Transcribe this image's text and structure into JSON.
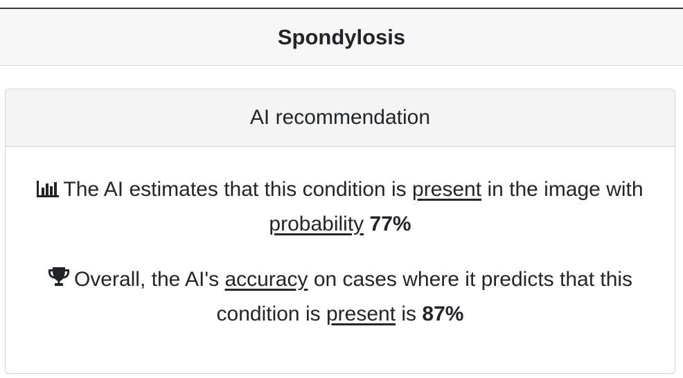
{
  "header": {
    "title": "Spondylosis"
  },
  "card": {
    "title": "AI recommendation",
    "estimate": {
      "icon": "bar-chart-icon",
      "prefix": "The AI estimates that this condition is",
      "status": "present",
      "middle": "in the image with",
      "metric": "probability",
      "value": "77%"
    },
    "accuracy": {
      "icon": "trophy-icon",
      "prefix": "Overall, the AI's",
      "metric": "accuracy",
      "middle": "on cases where it predicts that this condition is",
      "status": "present",
      "connector": "is",
      "value": "87%"
    }
  }
}
